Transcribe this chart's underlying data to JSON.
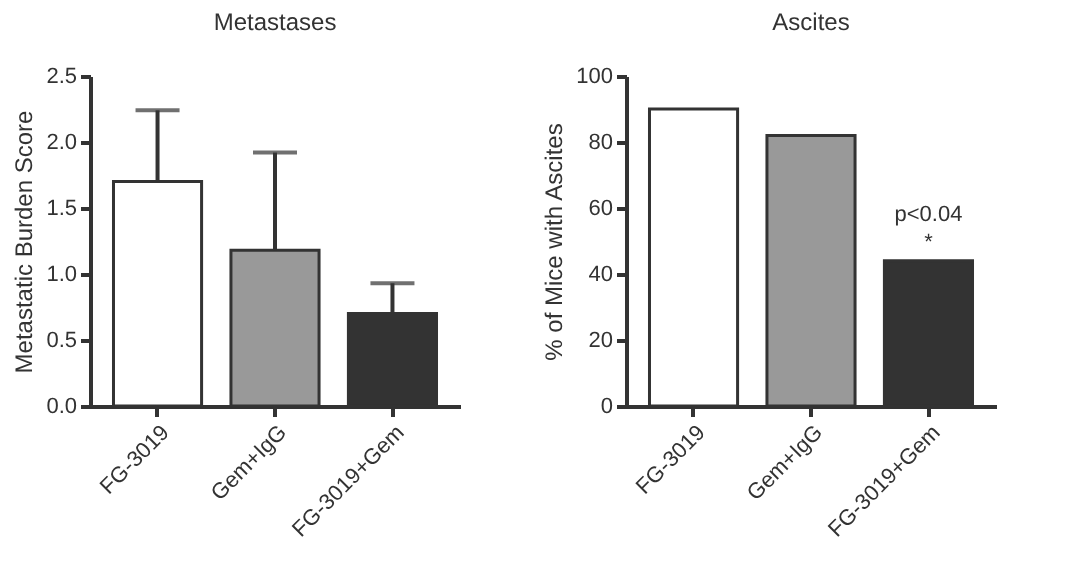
{
  "chart_data": [
    {
      "type": "bar",
      "title": "Metastases",
      "ylabel": "Metastatic Burden Score",
      "categories": [
        "FG-3019",
        "Gem+IgG",
        "FG-3019+Gem"
      ],
      "values": [
        1.7,
        1.18,
        0.7
      ],
      "colors": [
        "#ffffff",
        "#999999",
        "#333333"
      ],
      "errors": [
        [
          1.7,
          2.24
        ],
        [
          1.18,
          1.92
        ],
        [
          0.7,
          0.93
        ]
      ],
      "ylim": [
        0,
        2.5
      ],
      "yticks": [
        {
          "value": 0,
          "label": "0.0"
        },
        {
          "value": 0.5,
          "label": "0.5"
        },
        {
          "value": 1,
          "label": "1.0"
        },
        {
          "value": 1.5,
          "label": "1.5"
        },
        {
          "value": 2,
          "label": "2.0"
        },
        {
          "value": 2.5,
          "label": "2.5"
        }
      ],
      "grid": false
    },
    {
      "type": "bar",
      "title": "Ascites",
      "ylabel": "% of Mice with Ascites",
      "categories": [
        "FG-3019",
        "Gem+IgG",
        "FG-3019+Gem"
      ],
      "values": [
        90,
        82,
        44
      ],
      "colors": [
        "#ffffff",
        "#999999",
        "#333333"
      ],
      "annotations": [
        "p<0.04",
        "*"
      ],
      "ylim": [
        0,
        100
      ],
      "yticks": [
        0,
        20,
        40,
        60,
        80,
        100
      ],
      "grid": false
    }
  ]
}
